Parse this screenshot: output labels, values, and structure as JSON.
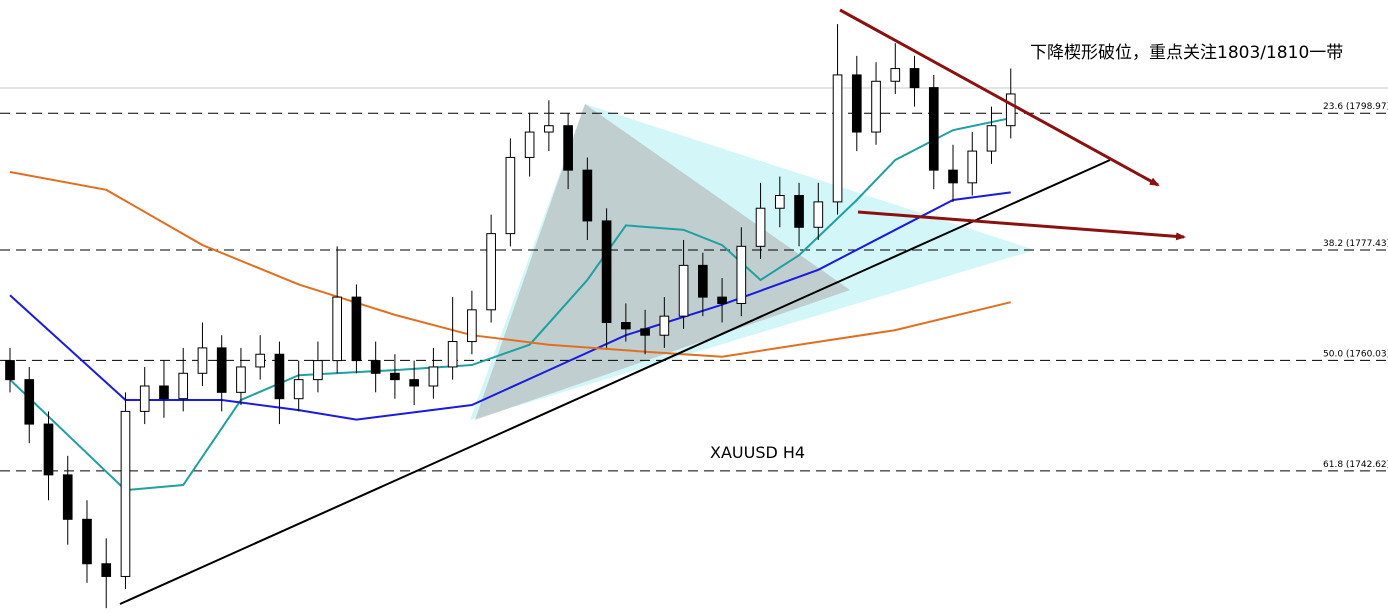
{
  "chart_data": {
    "type": "candlestick",
    "title": "下降楔形破位，重点关注1803/1810一带",
    "symbol_label": "XAUUSD  H4",
    "ylim": [
      1720.4,
      1816.8
    ],
    "yticks": [
      {
        "value": 1798.97,
        "label": "23.6 (1798.97)"
      },
      {
        "value": 1777.43,
        "label": "38.2 (1777.43)"
      },
      {
        "value": 1760.03,
        "label": "50.0 (1760.03)"
      },
      {
        "value": 1742.62,
        "label": "61.8 (1742.62)"
      }
    ],
    "open": [
      1760,
      1757,
      1750,
      1742,
      1735,
      1728,
      1726,
      1752,
      1756,
      1754,
      1758,
      1762,
      1755,
      1759,
      1761,
      1754,
      1757,
      1760,
      1770,
      1760,
      1758,
      1757,
      1756,
      1759,
      1763,
      1768,
      1780,
      1792,
      1796,
      1797,
      1790,
      1782,
      1766,
      1765,
      1764,
      1767,
      1775,
      1770,
      1769,
      1778,
      1784,
      1786,
      1781,
      1785,
      1805,
      1796,
      1804,
      1806,
      1803,
      1790,
      1788,
      1793,
      1797
    ],
    "high": [
      1762,
      1759,
      1752,
      1745,
      1738,
      1732,
      1755,
      1759,
      1760,
      1762,
      1766,
      1764,
      1762,
      1764,
      1763,
      1760,
      1763,
      1778,
      1772,
      1763,
      1761,
      1760,
      1762,
      1770,
      1771,
      1783,
      1795,
      1799,
      1801,
      1799,
      1792,
      1784,
      1769,
      1768,
      1770,
      1779,
      1777,
      1773,
      1781,
      1788,
      1789,
      1788,
      1788,
      1813,
      1808,
      1807,
      1810,
      1808,
      1805,
      1794,
      1796,
      1800,
      1806
    ],
    "low": [
      1755,
      1747,
      1738,
      1731,
      1725,
      1721,
      1724,
      1750,
      1751,
      1752,
      1756,
      1752,
      1753,
      1757,
      1750,
      1752,
      1755,
      1758,
      1758,
      1755,
      1754,
      1753,
      1754,
      1757,
      1761,
      1766,
      1778,
      1789,
      1793,
      1787,
      1779,
      1762,
      1763,
      1761,
      1762,
      1765,
      1767,
      1766,
      1767,
      1776,
      1781,
      1778,
      1779,
      1783,
      1793,
      1794,
      1802,
      1800,
      1787,
      1785,
      1786,
      1791,
      1795
    ],
    "close": [
      1757,
      1750,
      1742,
      1735,
      1728,
      1726,
      1752,
      1756,
      1754,
      1758,
      1762,
      1755,
      1759,
      1761,
      1754,
      1757,
      1760,
      1770,
      1760,
      1758,
      1757,
      1756,
      1759,
      1763,
      1768,
      1780,
      1792,
      1796,
      1797,
      1790,
      1782,
      1766,
      1765,
      1764,
      1767,
      1775,
      1770,
      1769,
      1778,
      1784,
      1786,
      1781,
      1785,
      1805,
      1796,
      1804,
      1806,
      1803,
      1790,
      1788,
      1793,
      1797,
      1802
    ],
    "series": [
      {
        "color": "#20a0a0",
        "x": [
          0,
          6,
          9,
          12,
          15,
          20,
          24,
          27,
          30,
          32,
          35,
          37,
          39,
          41,
          44,
          46,
          49,
          52
        ],
        "values": [
          1757.0,
          1739.6,
          1740.4,
          1753.8,
          1757.7,
          1758.5,
          1759.3,
          1762.5,
          1772.7,
          1781.3,
          1780.6,
          1778.2,
          1772.7,
          1776.6,
          1785.3,
          1791.6,
          1796.3,
          1798.2
        ]
      },
      {
        "color": "#1a1ae0",
        "x": [
          0,
          6,
          11,
          15,
          18,
          24,
          28,
          32,
          37,
          42,
          46,
          49,
          52
        ],
        "values": [
          1770.3,
          1753.8,
          1753.8,
          1752.2,
          1750.7,
          1753.0,
          1758.5,
          1764.0,
          1768.8,
          1774.3,
          1780.6,
          1785.3,
          1786.5
        ]
      },
      {
        "color": "#e07020",
        "x": [
          0,
          5,
          10,
          15,
          20,
          24,
          28,
          33,
          37,
          41,
          46,
          52
        ],
        "values": [
          1789.7,
          1786.9,
          1778.2,
          1772.0,
          1767.2,
          1764.0,
          1762.5,
          1761.4,
          1760.6,
          1762.5,
          1764.8,
          1769.2
        ]
      }
    ]
  }
}
